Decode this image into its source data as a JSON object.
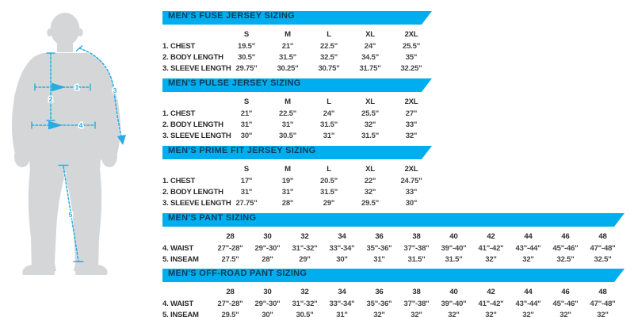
{
  "theme": {
    "accent": "#00aeef",
    "line": "#29abe2",
    "silhouette": "#d5d6d8",
    "banner_text": "#0e3c5a",
    "text": "#2b2b2b",
    "value_text": "#454545"
  },
  "figure": {
    "labels": [
      "1",
      "2",
      "3",
      "4",
      "5"
    ]
  },
  "sections": [
    {
      "title": "MEN'S FUSE JERSEY SIZING",
      "columns": [
        "S",
        "M",
        "L",
        "XL",
        "2XL"
      ],
      "rows": [
        {
          "label": "1. CHEST",
          "values": [
            "19.5\"",
            "21\"",
            "22.5\"",
            "24\"",
            "25.5\""
          ]
        },
        {
          "label": "2. BODY LENGTH",
          "values": [
            "30.5\"",
            "31.5\"",
            "32.5\"",
            "34.5\"",
            "35\""
          ]
        },
        {
          "label": "3. SLEEVE LENGTH",
          "values": [
            "29.75\"",
            "30.25\"",
            "30.75\"",
            "31.75\"",
            "32.25\""
          ]
        }
      ]
    },
    {
      "title": "MEN'S PULSE JERSEY SIZING",
      "columns": [
        "S",
        "M",
        "L",
        "XL",
        "2XL"
      ],
      "rows": [
        {
          "label": "1. CHEST",
          "values": [
            "21\"",
            "22.5\"",
            "24\"",
            "25.5\"",
            "27\""
          ]
        },
        {
          "label": "2. BODY LENGTH",
          "values": [
            "31\"",
            "31\"",
            "31.5\"",
            "32\"",
            "33\""
          ]
        },
        {
          "label": "3. SLEEVE LENGTH",
          "values": [
            "30\"",
            "30.5\"",
            "31\"",
            "31.5\"",
            "32\""
          ]
        }
      ]
    },
    {
      "title": "MEN'S PRIME FIT JERSEY SIZING",
      "columns": [
        "S",
        "M",
        "L",
        "XL",
        "2XL"
      ],
      "rows": [
        {
          "label": "1. CHEST",
          "values": [
            "17\"",
            "19\"",
            "20.5\"",
            "22\"",
            "24.75\""
          ]
        },
        {
          "label": "2. BODY LENGTH",
          "values": [
            "31\"",
            "31\"",
            "31.5\"",
            "32\"",
            "33\""
          ]
        },
        {
          "label": "3. SLEEVE LENGTH",
          "values": [
            "27.75\"",
            "28\"",
            "29\"",
            "29.5\"",
            "30\""
          ]
        }
      ]
    },
    {
      "title": "MEN'S PANT SIZING",
      "columns": [
        "28",
        "30",
        "32",
        "34",
        "36",
        "38",
        "40",
        "42",
        "44",
        "46",
        "48"
      ],
      "rows": [
        {
          "label": "4. WAIST",
          "values": [
            "27\"-28\"",
            "29\"-30\"",
            "31\"-32\"",
            "33\"-34\"",
            "35\"-36\"",
            "37\"-38\"",
            "39\"-40\"",
            "41\"-42\"",
            "43\"-44\"",
            "45\"-46\"",
            "47\"-48\""
          ]
        },
        {
          "label": "5. INSEAM",
          "values": [
            "27.5\"",
            "28\"",
            "29\"",
            "30\"",
            "31\"",
            "31.5\"",
            "31.5\"",
            "32\"",
            "32\"",
            "32.5\"",
            "32.5\""
          ]
        }
      ]
    },
    {
      "title": "MEN'S OFF-ROAD PANT SIZING",
      "columns": [
        "28",
        "30",
        "32",
        "34",
        "36",
        "38",
        "40",
        "42",
        "44",
        "46",
        "48"
      ],
      "rows": [
        {
          "label": "4. WAIST",
          "values": [
            "27\"-28\"",
            "29\"-30\"",
            "31\"-32\"",
            "33\"-34\"",
            "35\"-36\"",
            "37\"-38\"",
            "39\"-40\"",
            "41\"-42\"",
            "43\"-44\"",
            "45\"-46\"",
            "47\"-48\""
          ]
        },
        {
          "label": "5. INSEAM",
          "values": [
            "29.5\"",
            "30\"",
            "30.5\"",
            "31\"",
            "32\"",
            "32\"",
            "32\"",
            "32\"",
            "32\"",
            "32\"",
            "32\""
          ]
        }
      ]
    }
  ]
}
